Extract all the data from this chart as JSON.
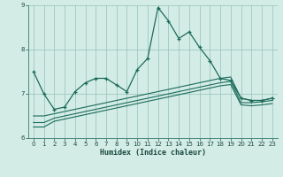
{
  "xlabel": "Humidex (Indice chaleur)",
  "background_color": "#d4ece6",
  "grid_color": "#9ec8c0",
  "line_color": "#1a6b5a",
  "x_values": [
    0,
    1,
    2,
    3,
    4,
    5,
    6,
    7,
    8,
    9,
    10,
    11,
    12,
    13,
    14,
    15,
    16,
    17,
    18,
    19,
    20,
    21,
    22,
    23
  ],
  "main_line": [
    7.5,
    7.0,
    6.65,
    6.7,
    7.05,
    7.25,
    7.35,
    7.35,
    7.2,
    7.05,
    7.55,
    7.8,
    8.95,
    8.65,
    8.25,
    8.4,
    8.05,
    7.75,
    7.35,
    7.3,
    6.9,
    6.85,
    6.85,
    6.9
  ],
  "line2": [
    6.5,
    6.5,
    6.55,
    6.6,
    6.65,
    6.7,
    6.75,
    6.8,
    6.85,
    6.9,
    6.95,
    7.0,
    7.05,
    7.1,
    7.15,
    7.2,
    7.25,
    7.3,
    7.35,
    7.38,
    6.9,
    6.85,
    6.85,
    6.9
  ],
  "line3": [
    6.35,
    6.35,
    6.45,
    6.5,
    6.55,
    6.6,
    6.65,
    6.7,
    6.75,
    6.8,
    6.85,
    6.9,
    6.95,
    7.0,
    7.05,
    7.1,
    7.15,
    7.2,
    7.25,
    7.28,
    6.8,
    6.8,
    6.82,
    6.85
  ],
  "line4": [
    6.25,
    6.25,
    6.38,
    6.43,
    6.48,
    6.53,
    6.58,
    6.63,
    6.68,
    6.73,
    6.78,
    6.83,
    6.88,
    6.93,
    6.98,
    7.03,
    7.08,
    7.13,
    7.18,
    7.21,
    6.75,
    6.73,
    6.75,
    6.78
  ],
  "ylim": [
    6.0,
    9.0
  ],
  "xlim": [
    -0.5,
    23.5
  ],
  "yticks": [
    6,
    7,
    8,
    9
  ],
  "xticks": [
    0,
    1,
    2,
    3,
    4,
    5,
    6,
    7,
    8,
    9,
    10,
    11,
    12,
    13,
    14,
    15,
    16,
    17,
    18,
    19,
    20,
    21,
    22,
    23
  ]
}
